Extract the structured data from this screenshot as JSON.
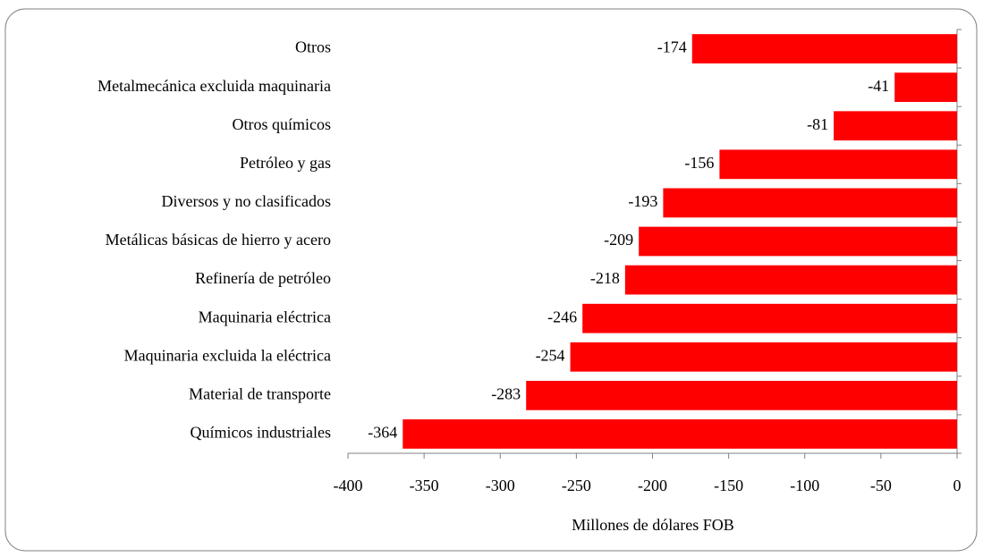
{
  "chart_data": {
    "type": "bar",
    "orientation": "horizontal",
    "categories": [
      "Otros",
      "Metalmecánica excluida maquinaria",
      "Otros químicos",
      "Petróleo y gas",
      "Diversos y no clasificados",
      "Metálicas básicas de hierro y acero",
      "Refinería de petróleo",
      "Maquinaria eléctrica",
      "Maquinaria excluida la eléctrica",
      "Material de transporte",
      "Químicos industriales"
    ],
    "values": [
      -174,
      -41,
      -81,
      -156,
      -193,
      -209,
      -218,
      -246,
      -254,
      -283,
      -364
    ],
    "color": "#ff0000",
    "x_label": "Millones de dólares FOB",
    "xlim": [
      -400,
      0
    ],
    "xticks": [
      -400,
      -350,
      -300,
      -250,
      -200,
      -150,
      -100,
      -50,
      0
    ],
    "grid": false
  }
}
